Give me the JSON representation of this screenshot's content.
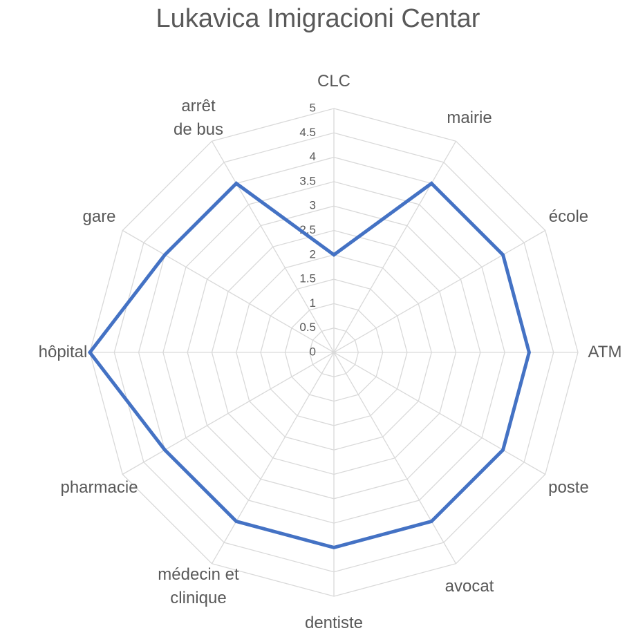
{
  "chart_data": {
    "type": "radar",
    "title": "Lukavica Imigracioni Centar",
    "categories": [
      "CLC",
      "mairie",
      "école",
      "ATM",
      "poste",
      "avocat",
      "dentiste",
      "médecin et clinique",
      "pharmacie",
      "hôpital",
      "gare",
      "arrêt de bus"
    ],
    "series": [
      {
        "name": "Lukavica Imigracioni Centar",
        "color": "#4472c4",
        "values": [
          2,
          4,
          4,
          4,
          4,
          4,
          4,
          4,
          4,
          5,
          4,
          4
        ]
      }
    ],
    "ylim": [
      0,
      5
    ],
    "yticks": [
      0,
      0.5,
      1,
      1.5,
      2,
      2.5,
      3,
      3.5,
      4,
      4.5,
      5
    ],
    "grid": true
  }
}
